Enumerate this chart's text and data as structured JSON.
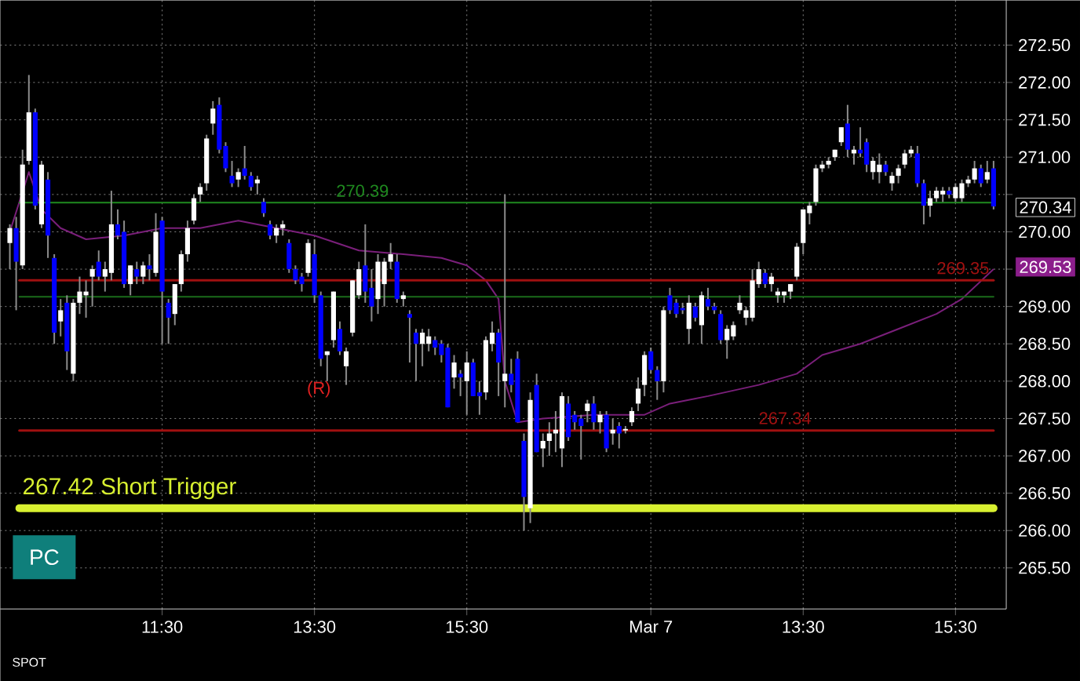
{
  "chart_data": {
    "type": "candlestick",
    "categories": [
      null,
      null,
      null,
      null,
      null,
      null,
      null,
      null,
      null,
      null,
      null,
      null,
      null,
      null,
      null,
      null,
      null,
      null,
      null,
      null,
      null,
      null,
      null,
      null,
      "11:30",
      null,
      null,
      null,
      null,
      null,
      null,
      null,
      null,
      null,
      null,
      null,
      null,
      null,
      null,
      null,
      null,
      null,
      null,
      null,
      null,
      null,
      null,
      null,
      "13:30",
      null,
      null,
      null,
      null,
      null,
      null,
      null,
      null,
      null,
      null,
      null,
      null,
      null,
      null,
      null,
      null,
      null,
      null,
      null,
      null,
      null,
      null,
      null,
      "15:30",
      null,
      null,
      null,
      null,
      null,
      null,
      null,
      null,
      null,
      null,
      null,
      null,
      null,
      null,
      null,
      null,
      null,
      null,
      null,
      null,
      null,
      null,
      null,
      null,
      null,
      null,
      null,
      null,
      "Mar 7",
      null,
      null,
      null,
      null,
      null,
      null,
      null,
      null,
      null,
      null,
      null,
      null,
      null,
      null,
      null,
      null,
      null,
      null,
      null,
      null,
      null,
      null,
      null,
      "13:30",
      null,
      null,
      null,
      null,
      null,
      null,
      null,
      null,
      null,
      null,
      null,
      null,
      null,
      null,
      null,
      null,
      null,
      null,
      null,
      null,
      null,
      null,
      null,
      "15:30",
      null,
      null,
      null,
      null,
      null,
      null
    ],
    "ohlc": [
      [
        269.85,
        270.1,
        269.5,
        270.05
      ],
      [
        270.05,
        270.2,
        268.95,
        269.6
      ],
      [
        269.55,
        271.1,
        269.5,
        270.9
      ],
      [
        270.95,
        272.1,
        270.9,
        271.6
      ],
      [
        271.6,
        271.65,
        270.3,
        270.35
      ],
      [
        270.1,
        270.95,
        270.05,
        270.9
      ],
      [
        270.7,
        270.8,
        269.65,
        269.95
      ],
      [
        269.65,
        269.7,
        268.5,
        268.65
      ],
      [
        268.8,
        269.1,
        268.6,
        268.95
      ],
      [
        269.05,
        269.15,
        268.15,
        268.4
      ],
      [
        268.1,
        269.1,
        268.0,
        269.05
      ],
      [
        269.05,
        269.4,
        268.9,
        269.2
      ],
      [
        269.15,
        269.35,
        268.85,
        269.2
      ],
      [
        269.4,
        269.55,
        269.0,
        269.5
      ],
      [
        269.6,
        269.75,
        269.35,
        269.4
      ],
      [
        269.4,
        269.6,
        269.2,
        269.5
      ],
      [
        269.45,
        270.55,
        269.35,
        270.1
      ],
      [
        270.1,
        270.3,
        269.9,
        269.95
      ],
      [
        270.0,
        270.15,
        269.25,
        269.3
      ],
      [
        269.3,
        269.55,
        269.15,
        269.55
      ],
      [
        269.5,
        269.6,
        269.3,
        269.4
      ],
      [
        269.4,
        269.6,
        269.3,
        269.55
      ],
      [
        269.55,
        269.7,
        269.35,
        269.5
      ],
      [
        269.45,
        270.25,
        269.4,
        270.0
      ],
      [
        270.15,
        270.2,
        268.5,
        269.2
      ],
      [
        269.05,
        269.1,
        268.5,
        268.85
      ],
      [
        268.9,
        269.3,
        268.75,
        269.3
      ],
      [
        269.3,
        269.75,
        269.2,
        269.7
      ],
      [
        269.7,
        270.15,
        269.6,
        270.05
      ],
      [
        270.15,
        270.5,
        270.1,
        270.45
      ],
      [
        270.5,
        270.65,
        270.4,
        270.6
      ],
      [
        270.65,
        271.3,
        270.55,
        271.25
      ],
      [
        271.45,
        271.75,
        271.3,
        271.65
      ],
      [
        271.7,
        271.8,
        271.05,
        271.1
      ],
      [
        271.15,
        271.2,
        270.8,
        270.85
      ],
      [
        270.75,
        270.95,
        270.6,
        270.65
      ],
      [
        270.7,
        270.85,
        270.6,
        270.8
      ],
      [
        270.85,
        271.15,
        270.7,
        270.75
      ],
      [
        270.75,
        270.8,
        270.55,
        270.6
      ],
      [
        270.65,
        270.75,
        270.5,
        270.7
      ],
      [
        270.4,
        270.45,
        270.2,
        270.25
      ],
      [
        270.1,
        270.15,
        269.9,
        269.95
      ],
      [
        269.95,
        270.1,
        269.85,
        270.05
      ],
      [
        270.05,
        270.15,
        269.95,
        270.1
      ],
      [
        269.85,
        269.9,
        269.45,
        269.5
      ],
      [
        269.5,
        269.55,
        269.3,
        269.35
      ],
      [
        269.4,
        269.45,
        269.2,
        269.3
      ],
      [
        269.45,
        269.9,
        269.4,
        269.85
      ],
      [
        269.7,
        269.9,
        269.05,
        269.15
      ],
      [
        269.15,
        269.2,
        268.2,
        268.3
      ],
      [
        268.35,
        268.4,
        268.0,
        268.4
      ],
      [
        268.55,
        269.2,
        268.45,
        269.2
      ],
      [
        268.7,
        268.8,
        268.35,
        268.4
      ],
      [
        268.2,
        268.45,
        267.95,
        268.4
      ],
      [
        268.65,
        269.35,
        268.6,
        269.35
      ],
      [
        269.15,
        269.6,
        269.1,
        269.5
      ],
      [
        269.55,
        270.1,
        269.05,
        269.2
      ],
      [
        269.25,
        269.5,
        268.8,
        269.0
      ],
      [
        269.1,
        269.7,
        268.9,
        269.6
      ],
      [
        269.3,
        269.65,
        269.0,
        269.6
      ],
      [
        269.6,
        269.85,
        269.5,
        269.7
      ],
      [
        269.6,
        269.7,
        269.05,
        269.1
      ],
      [
        269.1,
        269.2,
        269.0,
        269.15
      ],
      [
        268.9,
        268.95,
        268.25,
        268.85
      ],
      [
        268.65,
        268.7,
        268.0,
        268.5
      ],
      [
        268.5,
        268.7,
        268.2,
        268.65
      ],
      [
        268.5,
        268.7,
        268.4,
        268.6
      ],
      [
        268.55,
        268.6,
        268.35,
        268.45
      ],
      [
        268.5,
        268.55,
        268.25,
        268.35
      ],
      [
        268.45,
        268.5,
        267.65,
        267.65
      ],
      [
        268.05,
        268.35,
        267.9,
        268.25
      ],
      [
        268.1,
        268.15,
        267.8,
        268.05
      ],
      [
        268.0,
        268.4,
        267.55,
        268.25
      ],
      [
        268.25,
        268.3,
        267.8,
        267.8
      ],
      [
        267.85,
        268.0,
        267.55,
        267.8
      ],
      [
        267.85,
        268.6,
        267.75,
        268.55
      ],
      [
        268.5,
        268.8,
        268.4,
        268.65
      ],
      [
        268.65,
        268.7,
        267.8,
        268.25
      ],
      [
        268.0,
        270.5,
        267.65,
        268.1
      ],
      [
        268.1,
        268.3,
        267.85,
        267.95
      ],
      [
        268.3,
        268.4,
        267.45,
        267.45
      ],
      [
        267.2,
        267.3,
        266.0,
        266.45
      ],
      [
        266.3,
        267.85,
        266.1,
        267.75
      ],
      [
        267.95,
        268.1,
        267.05,
        267.05
      ],
      [
        267.1,
        267.3,
        266.85,
        267.2
      ],
      [
        267.2,
        267.45,
        267.0,
        267.3
      ],
      [
        267.3,
        267.6,
        267.05,
        267.35
      ],
      [
        267.1,
        267.85,
        266.85,
        267.8
      ],
      [
        267.7,
        267.8,
        267.2,
        267.25
      ],
      [
        267.55,
        267.6,
        267.35,
        267.45
      ],
      [
        267.5,
        267.55,
        266.95,
        267.4
      ],
      [
        267.6,
        267.75,
        267.45,
        267.7
      ],
      [
        267.7,
        267.8,
        267.35,
        267.45
      ],
      [
        267.45,
        267.6,
        267.3,
        267.55
      ],
      [
        267.55,
        267.6,
        267.05,
        267.1
      ],
      [
        267.3,
        267.5,
        267.15,
        267.35
      ],
      [
        267.4,
        267.45,
        267.1,
        267.3
      ],
      [
        267.34,
        267.4,
        267.3,
        267.36
      ],
      [
        267.45,
        267.65,
        267.4,
        267.6
      ],
      [
        267.7,
        268.05,
        267.6,
        267.9
      ],
      [
        267.95,
        268.4,
        267.8,
        268.35
      ],
      [
        268.4,
        268.45,
        268.1,
        268.15
      ],
      [
        268.15,
        268.2,
        267.75,
        268.0
      ],
      [
        268.0,
        269.0,
        267.85,
        268.95
      ],
      [
        269.15,
        269.25,
        268.9,
        268.95
      ],
      [
        269.05,
        269.1,
        268.85,
        268.9
      ],
      [
        268.98,
        269.05,
        268.9,
        268.95
      ],
      [
        268.7,
        269.15,
        268.5,
        269.05
      ],
      [
        269.0,
        269.05,
        268.8,
        268.85
      ],
      [
        268.75,
        269.2,
        268.5,
        269.15
      ],
      [
        269.1,
        269.25,
        268.95,
        269.0
      ],
      [
        269.0,
        269.05,
        268.9,
        268.95
      ],
      [
        268.9,
        268.95,
        268.5,
        268.55
      ],
      [
        268.55,
        268.75,
        268.3,
        268.7
      ],
      [
        268.6,
        268.8,
        268.55,
        268.75
      ],
      [
        268.95,
        269.15,
        268.9,
        269.05
      ],
      [
        268.85,
        269.0,
        268.75,
        268.95
      ],
      [
        268.85,
        269.5,
        268.8,
        269.35
      ],
      [
        269.3,
        269.6,
        269.25,
        269.5
      ],
      [
        269.45,
        269.5,
        269.25,
        269.3
      ],
      [
        269.3,
        269.45,
        269.2,
        269.4
      ],
      [
        269.15,
        269.25,
        269.05,
        269.2
      ],
      [
        269.15,
        269.2,
        269.05,
        269.2
      ],
      [
        269.2,
        269.3,
        269.1,
        269.3
      ],
      [
        269.4,
        269.85,
        269.35,
        269.8
      ],
      [
        269.85,
        270.3,
        269.7,
        270.3
      ],
      [
        270.25,
        270.4,
        270.1,
        270.35
      ],
      [
        270.4,
        270.9,
        270.35,
        270.85
      ],
      [
        270.85,
        270.95,
        270.8,
        270.9
      ],
      [
        270.9,
        271.0,
        270.85,
        270.95
      ],
      [
        271.0,
        271.1,
        270.95,
        271.1
      ],
      [
        271.2,
        271.4,
        271.15,
        271.4
      ],
      [
        271.45,
        271.7,
        271.0,
        271.1
      ],
      [
        271.05,
        271.15,
        270.9,
        271.1
      ],
      [
        271.1,
        271.4,
        271.0,
        271.05
      ],
      [
        271.2,
        271.25,
        270.8,
        270.9
      ],
      [
        270.8,
        271.0,
        270.7,
        270.95
      ],
      [
        270.8,
        271.05,
        270.65,
        270.9
      ],
      [
        270.9,
        270.95,
        270.75,
        270.8
      ],
      [
        270.65,
        270.8,
        270.55,
        270.75
      ],
      [
        270.75,
        270.9,
        270.65,
        270.85
      ],
      [
        270.9,
        271.1,
        270.85,
        271.05
      ],
      [
        271.05,
        271.15,
        271.0,
        271.1
      ],
      [
        271.05,
        271.15,
        270.6,
        270.65
      ],
      [
        270.65,
        270.7,
        270.1,
        270.35
      ],
      [
        270.35,
        270.55,
        270.2,
        270.45
      ],
      [
        270.45,
        270.6,
        270.4,
        270.55
      ],
      [
        270.5,
        270.6,
        270.4,
        270.55
      ],
      [
        270.55,
        270.6,
        270.45,
        270.5
      ],
      [
        270.45,
        270.65,
        270.4,
        270.6
      ],
      [
        270.45,
        270.7,
        270.4,
        270.65
      ],
      [
        270.65,
        270.75,
        270.6,
        270.7
      ],
      [
        270.7,
        270.95,
        270.65,
        270.85
      ],
      [
        270.85,
        270.9,
        270.6,
        270.65
      ],
      [
        270.7,
        270.95,
        270.65,
        270.8
      ],
      [
        270.85,
        270.95,
        270.3,
        270.34
      ]
    ],
    "series": [
      {
        "type": "line",
        "color": "#7a1f7a",
        "values": [
          270.0,
          null,
          null,
          270.8,
          null,
          270.3,
          null,
          null,
          270.05,
          null,
          null,
          null,
          269.9,
          null,
          null,
          null,
          null,
          null,
          269.95,
          null,
          null,
          null,
          null,
          null,
          270.05,
          null,
          null,
          null,
          null,
          null,
          270.05,
          null,
          null,
          null,
          null,
          null,
          270.15,
          null,
          null,
          null,
          null,
          null,
          270.05,
          null,
          null,
          null,
          null,
          null,
          269.95,
          null,
          null,
          null,
          null,
          null,
          null,
          269.75,
          null,
          null,
          null,
          null,
          null,
          null,
          269.7,
          null,
          null,
          null,
          null,
          null,
          269.65,
          null,
          null,
          null,
          269.55,
          null,
          null,
          269.35,
          null,
          269.1,
          268.0,
          null,
          267.45,
          null,
          null,
          null,
          267.5,
          null,
          null,
          null,
          null,
          null,
          null,
          null,
          267.55,
          null,
          null,
          null,
          null,
          null,
          null,
          null,
          267.55,
          null,
          null,
          null,
          267.7,
          null,
          null,
          null,
          null,
          null,
          267.8,
          null,
          null,
          null,
          null,
          null,
          null,
          null,
          267.95,
          null,
          null,
          null,
          null,
          null,
          268.1,
          null,
          null,
          null,
          268.35,
          null,
          null,
          null,
          null,
          null,
          268.5,
          null,
          null,
          null,
          null,
          null,
          268.7,
          null,
          null,
          null,
          null,
          null,
          268.9,
          null,
          null,
          null,
          269.1,
          null,
          null,
          null,
          null,
          269.5
        ]
      }
    ],
    "ylim": [
      264.95,
      273.1
    ],
    "yticks": [
      {
        "value": 265.5,
        "label": "265.50"
      },
      {
        "value": 266.0,
        "label": "266.00"
      },
      {
        "value": 266.5,
        "label": "266.50"
      },
      {
        "value": 267.0,
        "label": "267.00"
      },
      {
        "value": 267.5,
        "label": "267.50"
      },
      {
        "value": 268.0,
        "label": "268.00"
      },
      {
        "value": 268.5,
        "label": "268.50"
      },
      {
        "value": 269.0,
        "label": "269.00"
      },
      {
        "value": 269.5,
        "label": null
      },
      {
        "value": 270.0,
        "label": "270.00"
      },
      {
        "value": 270.5,
        "label": null
      },
      {
        "value": 271.0,
        "label": "271.00"
      },
      {
        "value": 271.5,
        "label": "271.50"
      },
      {
        "value": 272.0,
        "label": "272.00"
      },
      {
        "value": 272.5,
        "label": "272.50"
      }
    ],
    "grid": true,
    "ref_lines": [
      {
        "axis": "y",
        "value": 270.39,
        "label": "270.39",
        "color": "#1f8a1f"
      },
      {
        "axis": "y",
        "value": 269.13,
        "color": "#1a6b1a"
      },
      {
        "axis": "y",
        "value": 267.34,
        "label": "267.34",
        "color": "#a01010"
      },
      {
        "axis": "y",
        "value": 269.35,
        "label": "269.35",
        "color": "#a01010"
      },
      {
        "axis": "y",
        "value": 266.3,
        "label": "267.42 Short Trigger",
        "color": "#d8f030"
      }
    ],
    "annotations": [
      "PC",
      "SPOT",
      "(R)",
      "270.34",
      "269.53"
    ]
  }
}
